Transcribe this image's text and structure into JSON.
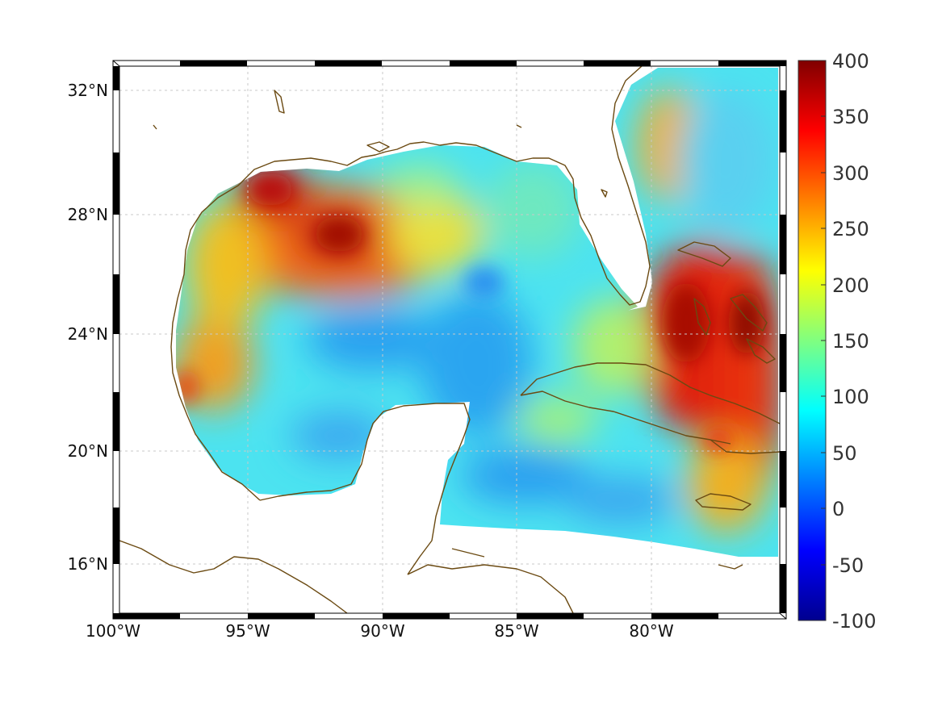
{
  "map": {
    "type": "heatmap",
    "lon_range": [
      -100,
      -75
    ],
    "lat_range": [
      14.2,
      32.9
    ],
    "lon_ticks": [
      "100°W",
      "95°W",
      "90°W",
      "85°W",
      "80°W"
    ],
    "lat_ticks": [
      "32°N",
      "28°N",
      "24°N",
      "20°N",
      "16°N"
    ],
    "grid": true,
    "colorbar": {
      "min": -100,
      "max": 400,
      "ticks": [
        "400",
        "350",
        "300",
        "250",
        "200",
        "150",
        "100",
        "50",
        "0",
        "-50",
        "-100"
      ],
      "colormap": "jet"
    },
    "colors": {
      "coastline": "#6b4a12",
      "grid": "#c8c8c8",
      "frame": "#000000"
    }
  }
}
